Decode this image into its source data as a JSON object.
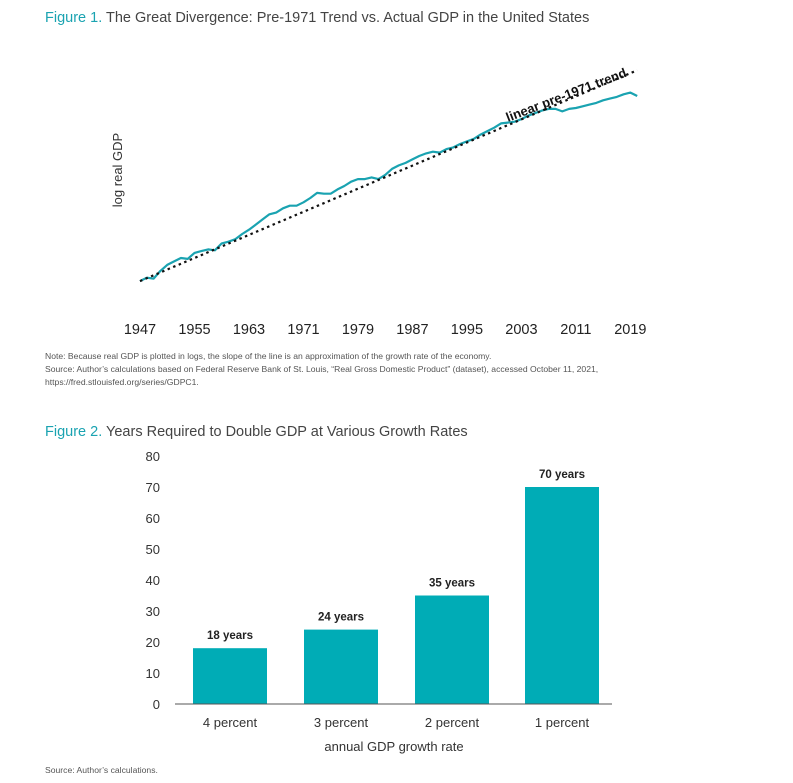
{
  "figure1": {
    "label": "Figure 1.",
    "title": "The Great Divergence: Pre-1971 Trend vs. Actual GDP in the United States",
    "note": "Note: Because real GDP is plotted in logs, the slope of the line is an approximation of the growth rate of the economy.",
    "source_line1": "Source: Author’s calculations based on Federal Reserve Bank of St. Louis, “Real Gross Domestic Product” (dataset), accessed October 11, 2021,",
    "source_line2": "https://fred.stlouisfed.org/series/GDPC1."
  },
  "figure2": {
    "label": "Figure 2.",
    "title": "Years Required to Double GDP at Various Growth Rates",
    "source": "Source: Author’s calculations."
  },
  "colors": {
    "accent": "#1aa3b1",
    "bar": "#00acb6",
    "trend": "#111111"
  },
  "chart_data": [
    {
      "type": "line",
      "ylabel": "log real GDP",
      "xlabel": "",
      "xticks": [
        "1947",
        "1955",
        "1963",
        "1971",
        "1979",
        "1987",
        "1995",
        "2003",
        "2011",
        "2019"
      ],
      "xlim": [
        1947,
        2021
      ],
      "ylim": [
        7.5,
        10.3
      ],
      "grid": false,
      "annotation": "linear pre-1971 trend",
      "series": [
        {
          "style": "solid",
          "x": [
            1947,
            1948,
            1949,
            1950,
            1951,
            1952,
            1953,
            1954,
            1955,
            1956,
            1957,
            1958,
            1959,
            1960,
            1961,
            1962,
            1963,
            1964,
            1965,
            1966,
            1967,
            1968,
            1969,
            1970,
            1971,
            1972,
            1973,
            1974,
            1975,
            1976,
            1977,
            1978,
            1979,
            1980,
            1981,
            1982,
            1983,
            1984,
            1985,
            1986,
            1987,
            1988,
            1989,
            1990,
            1991,
            1992,
            1993,
            1994,
            1995,
            1996,
            1997,
            1998,
            1999,
            2000,
            2001,
            2002,
            2003,
            2004,
            2005,
            2006,
            2007,
            2008,
            2009,
            2010,
            2011,
            2012,
            2013,
            2014,
            2015,
            2016,
            2017,
            2018,
            2019,
            2020
          ],
          "values": [
            7.72,
            7.76,
            7.75,
            7.84,
            7.91,
            7.95,
            7.99,
            7.98,
            8.05,
            8.07,
            8.09,
            8.08,
            8.16,
            8.18,
            8.21,
            8.27,
            8.32,
            8.38,
            8.44,
            8.5,
            8.52,
            8.57,
            8.6,
            8.6,
            8.64,
            8.69,
            8.75,
            8.74,
            8.74,
            8.79,
            8.83,
            8.88,
            8.91,
            8.91,
            8.93,
            8.91,
            8.96,
            9.03,
            9.07,
            9.1,
            9.14,
            9.18,
            9.21,
            9.23,
            9.22,
            9.26,
            9.28,
            9.32,
            9.35,
            9.38,
            9.43,
            9.47,
            9.51,
            9.56,
            9.57,
            9.58,
            9.61,
            9.65,
            9.68,
            9.71,
            9.73,
            9.73,
            9.7,
            9.73,
            9.74,
            9.76,
            9.78,
            9.8,
            9.83,
            9.85,
            9.87,
            9.9,
            9.92,
            9.88
          ]
        },
        {
          "style": "dotted",
          "x": [
            1947,
            2020
          ],
          "values": [
            7.72,
            10.18
          ]
        }
      ]
    },
    {
      "type": "bar",
      "categories": [
        "4 percent",
        "3 percent",
        "2 percent",
        "1 percent"
      ],
      "values": [
        18,
        24,
        35,
        70
      ],
      "data_labels": [
        "18 years",
        "24 years",
        "35 years",
        "70 years"
      ],
      "xlabel": "annual GDP growth rate",
      "ylabel": "",
      "ylim": [
        0,
        80
      ],
      "yticks": [
        "0",
        "10",
        "20",
        "30",
        "40",
        "50",
        "60",
        "70",
        "80"
      ],
      "grid": false
    }
  ]
}
